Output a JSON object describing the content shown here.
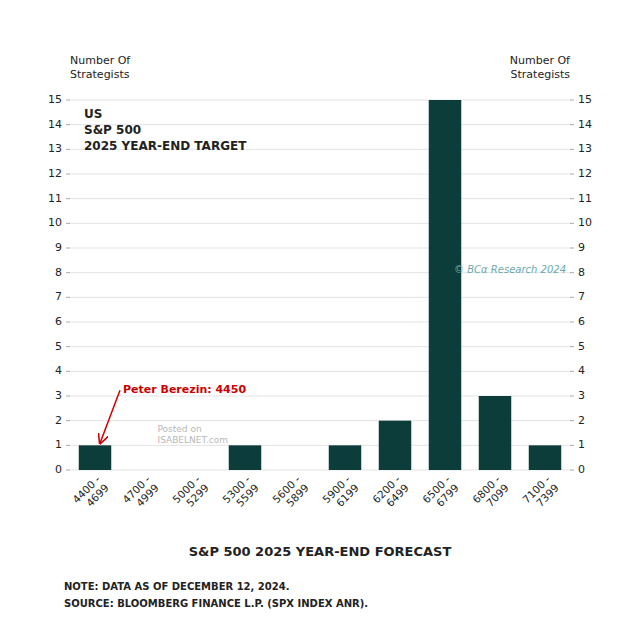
{
  "chart_data": {
    "type": "bar",
    "title": "US\nS&P 500\n2025 YEAR-END TARGET",
    "x_label": "S&P 500 2025 YEAR-END FORECAST",
    "y_label": "Number Of\nStrategists",
    "y2_label": "Number Of\nStrategists",
    "categories": [
      "4400 -\n4699",
      "4700 -\n4999",
      "5000 -\n5299",
      "5300 -\n5599",
      "5600 -\n5899",
      "5900 -\n6199",
      "6200 -\n6499",
      "6500 -\n6799",
      "6800 -\n7099",
      "7100 -\n7399"
    ],
    "values": [
      1,
      0,
      0,
      1,
      0,
      1,
      2,
      15,
      3,
      1
    ],
    "color": "#0d3d3a",
    "ylim": [
      0,
      15
    ],
    "yticks": [
      0,
      1,
      2,
      3,
      4,
      5,
      6,
      7,
      8,
      9,
      10,
      11,
      12,
      13,
      14,
      15
    ],
    "y2lim": [
      0,
      15
    ],
    "y2ticks": [
      0,
      1,
      2,
      3,
      4,
      5,
      6,
      7,
      8,
      9,
      10,
      11,
      12,
      13,
      14,
      15
    ],
    "grid": true,
    "annotations": [
      {
        "text": "Peter Berezin: 4450",
        "color": "#cc0000",
        "category": "4400 -\n4699"
      }
    ],
    "notes": [
      "NOTE: DATA AS OF DECEMBER 12, 2024.",
      "SOURCE: BLOOMBERG FINANCE L.P. (SPX INDEX ANR)."
    ],
    "watermarks": [
      "© BCα Research 2024",
      "Posted on\nISABELNET.com"
    ]
  }
}
